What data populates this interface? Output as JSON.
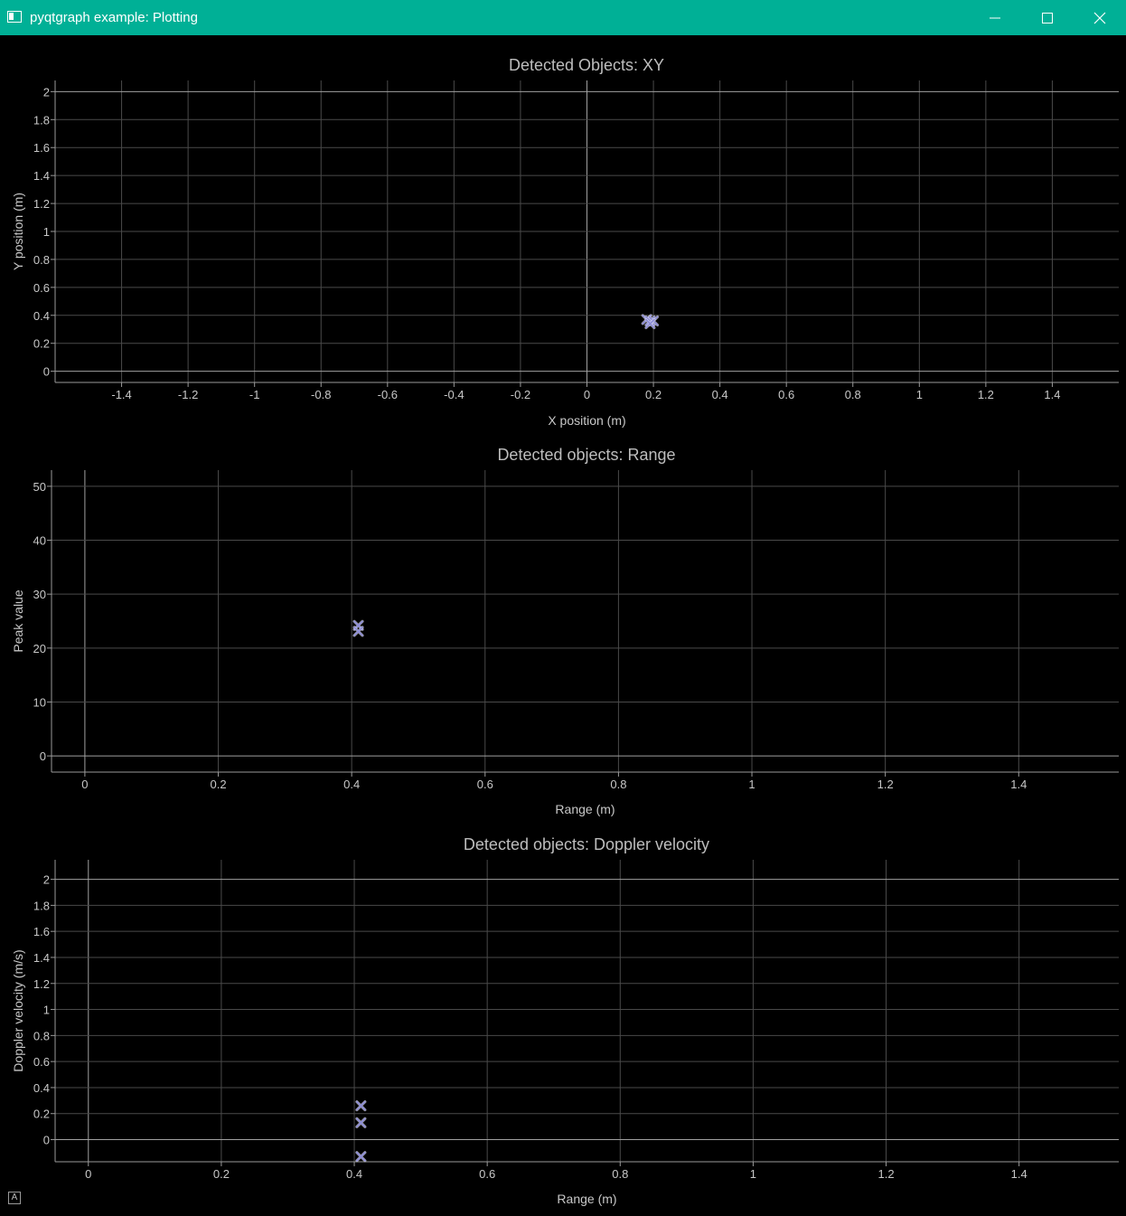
{
  "window": {
    "title": "pyqtgraph example: Plotting",
    "accent_color": "#00b096",
    "icons": [
      "app-icon",
      "minimize-icon",
      "maximize-icon",
      "close-icon"
    ]
  },
  "auto_range_button": {
    "label": "A",
    "icon": "auto-range-icon"
  },
  "chart_data": [
    {
      "type": "scatter",
      "title": "Detected Objects: XY",
      "xlabel": "X position (m)",
      "ylabel": "Y position (m)",
      "xlim": [
        -1.6,
        1.6
      ],
      "ylim": [
        -0.08,
        2.08
      ],
      "xticks": [
        -1.4,
        -1.2,
        -1,
        -0.8,
        -0.6,
        -0.4,
        -0.2,
        0,
        0.2,
        0.4,
        0.6,
        0.8,
        1,
        1.2,
        1.4
      ],
      "xtick_labels": [
        "-1.4",
        "-1.2",
        "-1",
        "-0.8",
        "-0.6",
        "-0.4",
        "-0.2",
        "0",
        "0.2",
        "0.4",
        "0.6",
        "0.8",
        "1",
        "1.2",
        "1.4"
      ],
      "yticks": [
        0,
        0.2,
        0.4,
        0.6,
        0.8,
        1,
        1.2,
        1.4,
        1.6,
        1.8,
        2
      ],
      "ytick_labels": [
        "0",
        "0.2",
        "0.4",
        "0.6",
        "0.8",
        "1",
        "1.2",
        "1.4",
        "1.6",
        "1.8",
        "2"
      ],
      "grid": true,
      "marker": "x",
      "marker_color": "#8f8fd6",
      "x": [
        0.18,
        0.19,
        0.2,
        0.19
      ],
      "y": [
        0.37,
        0.36,
        0.36,
        0.34
      ]
    },
    {
      "type": "scatter",
      "title": "Detected objects: Range",
      "xlabel": "Range (m)",
      "ylabel": "Peak value",
      "xlim": [
        -0.05,
        1.55
      ],
      "ylim": [
        -3,
        53
      ],
      "xticks": [
        0,
        0.2,
        0.4,
        0.6,
        0.8,
        1,
        1.2,
        1.4
      ],
      "xtick_labels": [
        "0",
        "0.2",
        "0.4",
        "0.6",
        "0.8",
        "1",
        "1.2",
        "1.4"
      ],
      "yticks": [
        0,
        10,
        20,
        30,
        40,
        50
      ],
      "ytick_labels": [
        "0",
        "10",
        "20",
        "30",
        "40",
        "50"
      ],
      "grid": true,
      "marker": "x",
      "marker_color": "#8f8fd6",
      "x": [
        0.41,
        0.41
      ],
      "y": [
        24.2,
        23.1
      ]
    },
    {
      "type": "scatter",
      "title": "Detected objects: Doppler velocity",
      "xlabel": "Range (m)",
      "ylabel": "Doppler velocity (m/s)",
      "xlim": [
        -0.05,
        1.55
      ],
      "ylim": [
        -0.17,
        2.15
      ],
      "xticks": [
        0,
        0.2,
        0.4,
        0.6,
        0.8,
        1,
        1.2,
        1.4
      ],
      "xtick_labels": [
        "0",
        "0.2",
        "0.4",
        "0.6",
        "0.8",
        "1",
        "1.2",
        "1.4"
      ],
      "yticks": [
        0,
        0.2,
        0.4,
        0.6,
        0.8,
        1,
        1.2,
        1.4,
        1.6,
        1.8,
        2
      ],
      "ytick_labels": [
        "0",
        "0.2",
        "0.4",
        "0.6",
        "0.8",
        "1",
        "1.2",
        "1.4",
        "1.6",
        "1.8",
        "2"
      ],
      "grid": true,
      "marker": "x",
      "marker_color": "#8f8fd6",
      "x": [
        0.41,
        0.41,
        0.41
      ],
      "y": [
        0.26,
        0.13,
        -0.13
      ]
    }
  ]
}
